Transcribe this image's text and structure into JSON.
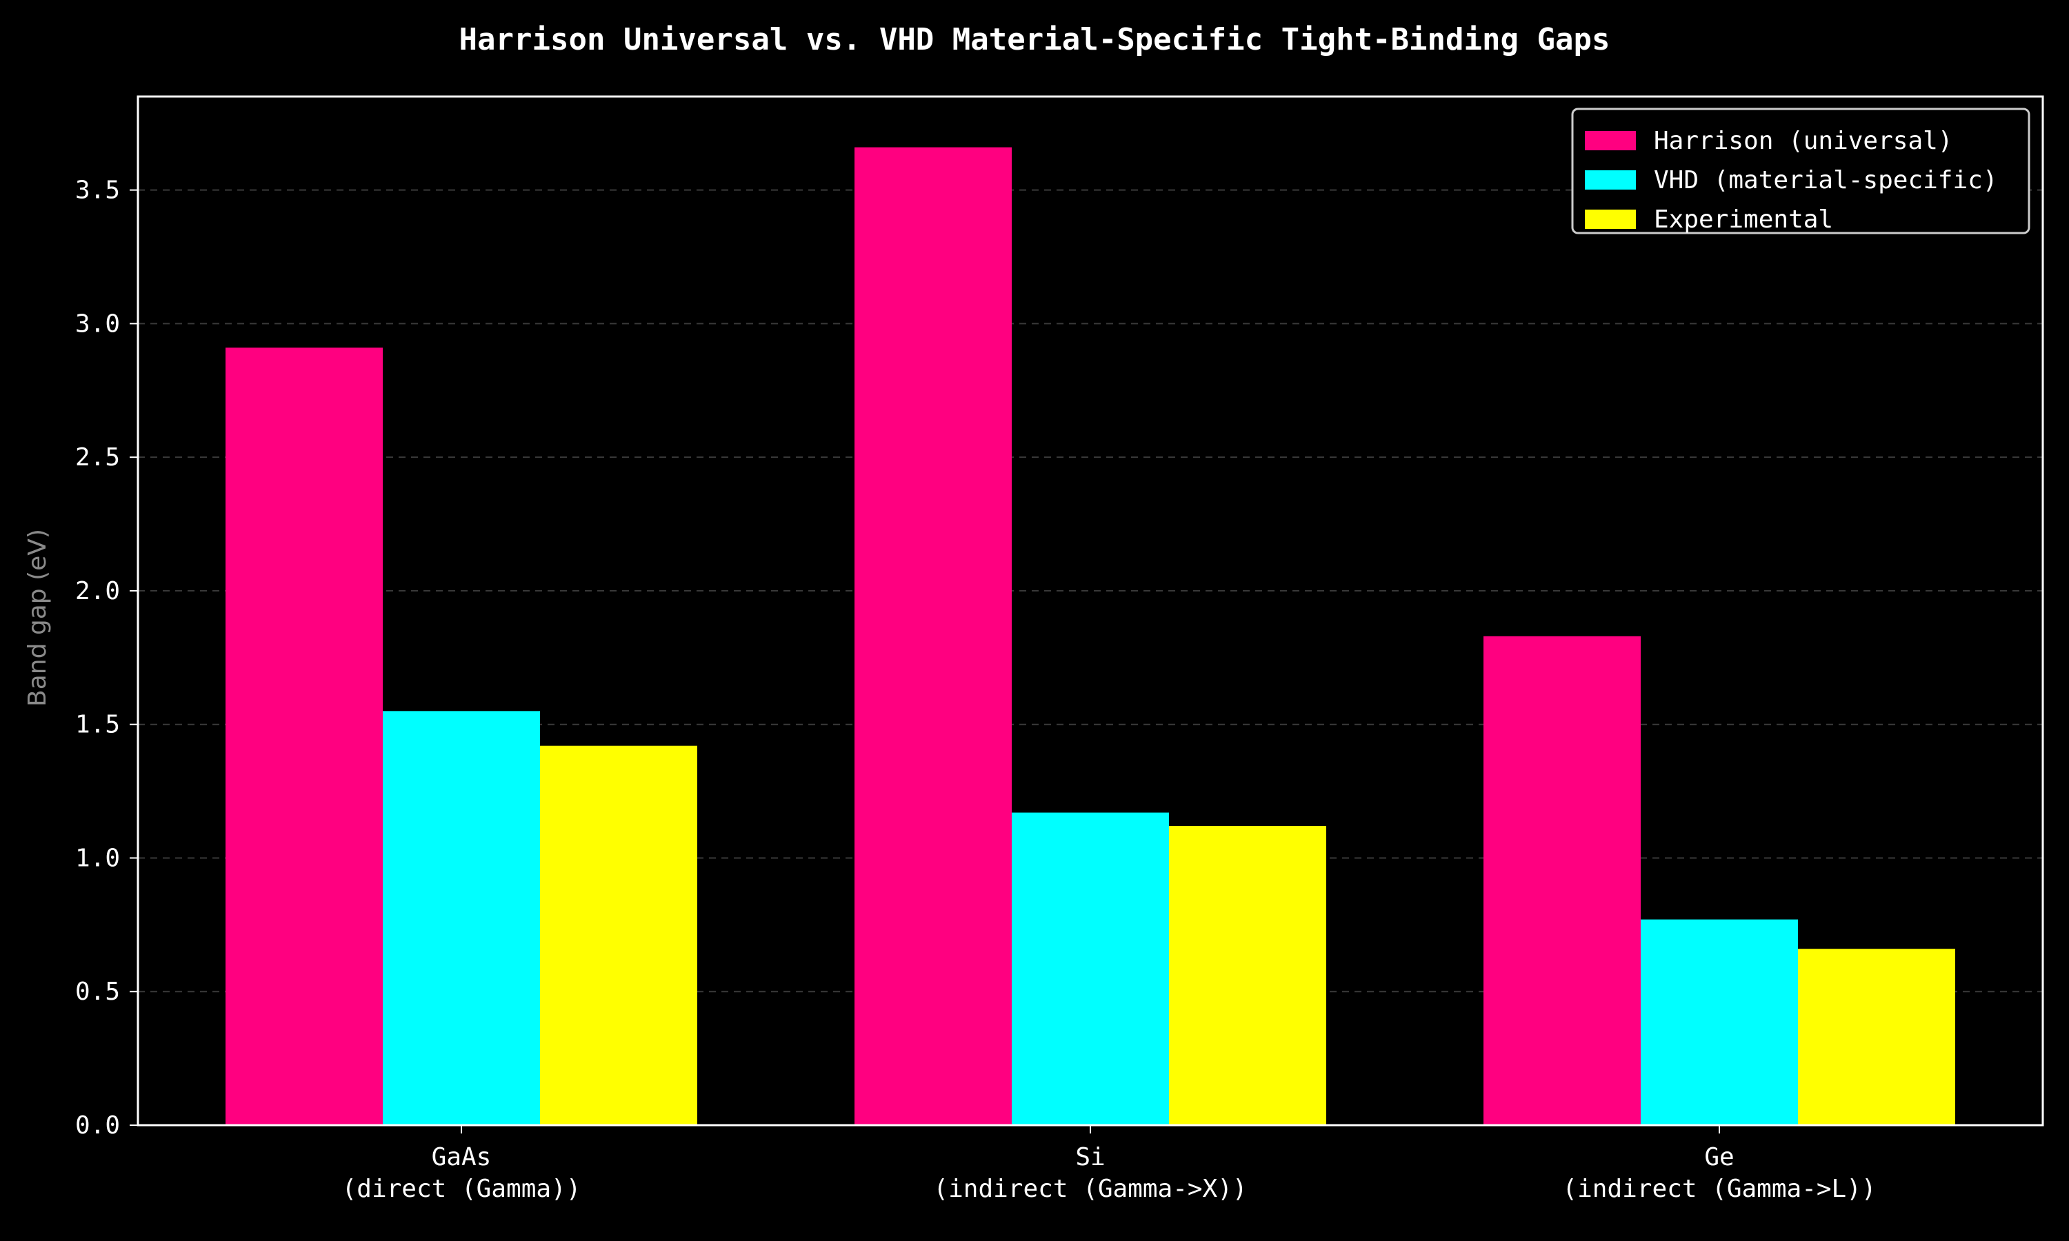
{
  "chart_data": {
    "type": "bar",
    "title": "Harrison Universal vs. VHD Material-Specific Tight-Binding Gaps",
    "xlabel": "",
    "ylabel": "Band gap (eV)",
    "ylim": [
      0,
      3.85
    ],
    "yticks": [
      "0.0",
      "0.5",
      "1.0",
      "1.5",
      "2.0",
      "2.5",
      "3.0",
      "3.5"
    ],
    "categories": [
      [
        "GaAs",
        "(direct (Gamma))"
      ],
      [
        "Si",
        "(indirect (Gamma->X))"
      ],
      [
        "Ge",
        "(indirect (Gamma->L))"
      ]
    ],
    "series": [
      {
        "name": "Harrison (universal)",
        "color": "#ff0080",
        "values": [
          2.91,
          3.66,
          1.83
        ]
      },
      {
        "name": "VHD (material-specific)",
        "color": "#00ffff",
        "values": [
          1.55,
          1.17,
          0.77
        ]
      },
      {
        "name": "Experimental",
        "color": "#ffff00",
        "values": [
          1.42,
          1.12,
          0.66
        ]
      }
    ],
    "grid": true,
    "legend_position": "top-right",
    "background": "#000000",
    "axis_color": "#ffffff"
  }
}
